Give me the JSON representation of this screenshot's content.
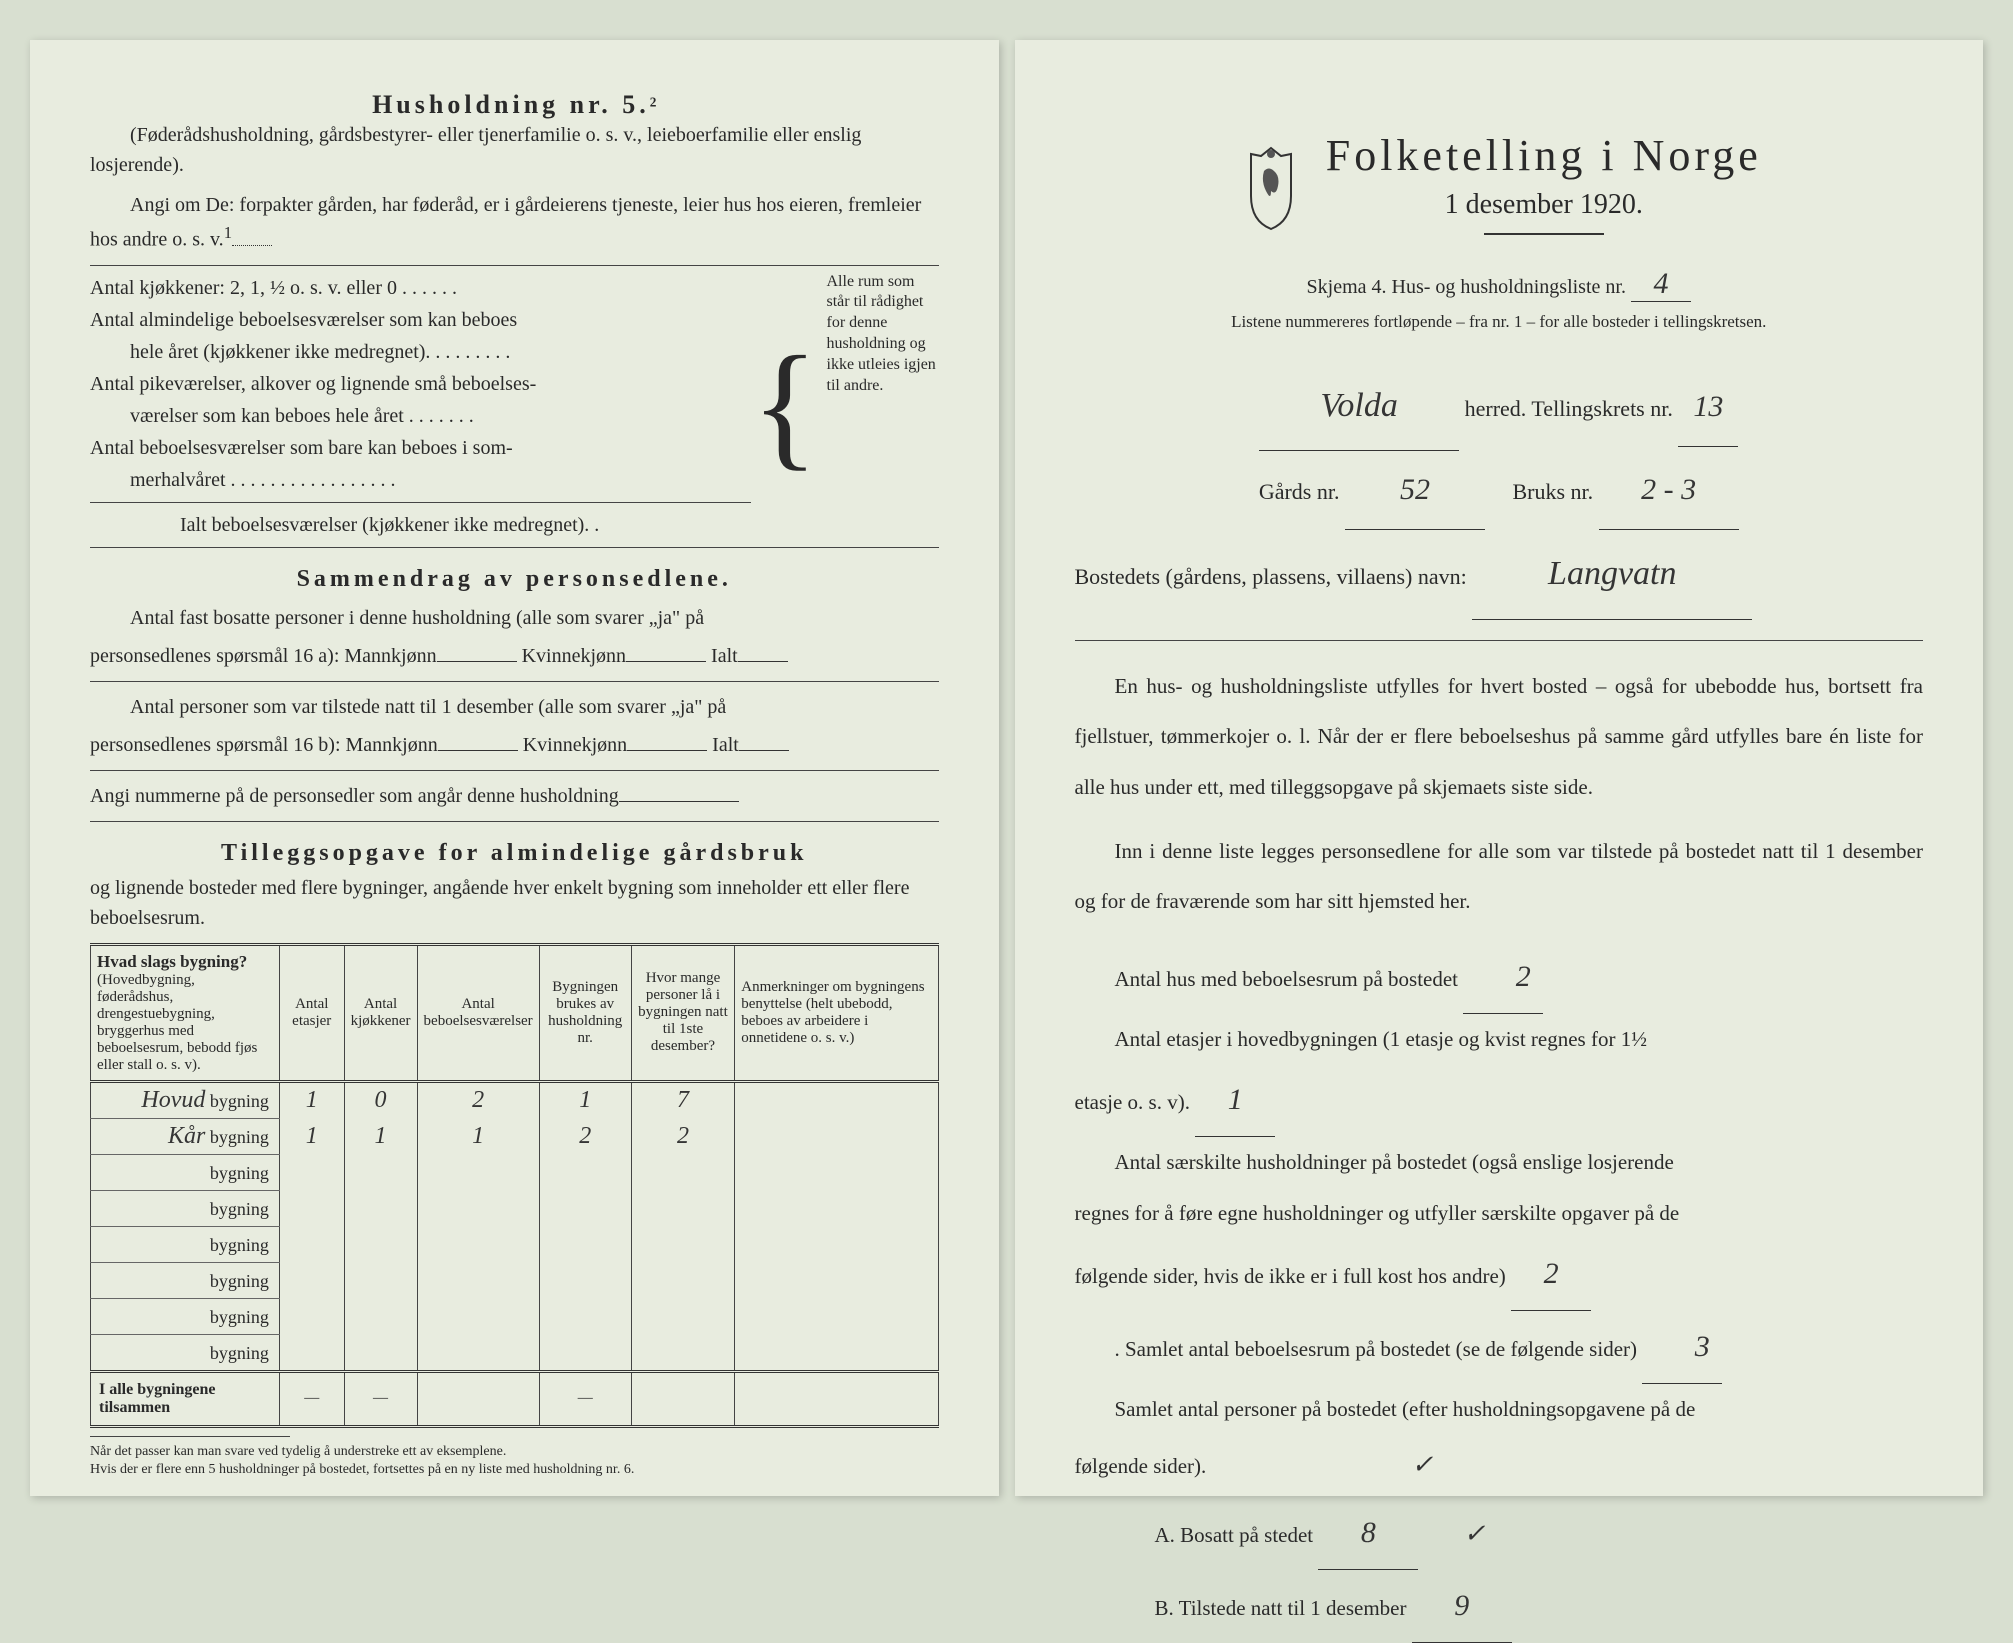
{
  "left": {
    "heading": "Husholdning nr. 5.",
    "heading_sup": "2",
    "sub1": "(Føderådshusholdning, gårdsbestyrer- eller tjenerfamilie o. s. v., leieboerfamilie eller enslig losjerende).",
    "sub2": "Angi om De: forpakter gården, har føderåd, er i gårdeierens tjeneste, leier hus hos eieren, fremleier hos andre o. s. v.",
    "sub2_sup": "1",
    "rooms": {
      "l1": "Antal kjøkkener: 2, 1, ½ o. s. v. eller 0 . . . . . .",
      "l2a": "Antal almindelige beboelsesværelser som kan beboes",
      "l2b": "hele året (kjøkkener ikke medregnet). . . . . . . . .",
      "l3a": "Antal pikeværelser, alkover og lignende små beboelses-",
      "l3b": "værelser som kan beboes hele året . . . . . . .",
      "l4a": "Antal beboelsesværelser som bare kan beboes i som-",
      "l4b": "merhalvåret . . . . . . . . . . . . . . . . .",
      "l5": "Ialt beboelsesværelser  (kjøkkener ikke medregnet). .",
      "side": "Alle rum som står til rådighet for denne husholdning og ikke utleies igjen til andre."
    },
    "sammendrag_title": "Sammendrag av personsedlene.",
    "sam1a": "Antal fast bosatte personer i denne husholdning (alle som svarer „ja\" på",
    "sam1b": "personsedlenes spørsmål 16 a): Mannkjønn",
    "sam_kvin": "Kvinnekjønn",
    "sam_ialt": "Ialt",
    "sam2a": "Antal personer som var tilstede natt til 1 desember (alle som svarer „ja\" på",
    "sam2b": "personsedlenes spørsmål 16 b): Mannkjønn",
    "sam3": "Angi nummerne på de personsedler som angår denne husholdning",
    "tillegg_title": "Tilleggsopgave for almindelige gårdsbruk",
    "tillegg_sub": "og lignende bosteder med flere bygninger, angående hver enkelt bygning som inneholder ett eller flere beboelsesrum.",
    "table": {
      "h1a": "Hvad slags bygning?",
      "h1b": "(Hovedbygning, føderådshus, drengestuebygning, bryggerhus med beboelsesrum, bebodd fjøs eller stall o. s. v).",
      "h2": "Antal etasjer",
      "h3": "Antal kjøkkener",
      "h4": "Antal beboelsesværelser",
      "h5": "Bygningen brukes av husholdning nr.",
      "h6": "Hvor mange personer lå i bygningen natt til 1ste desember?",
      "h7": "Anmerkninger om bygningens benyttelse (helt ubebodd, beboes av arbeidere i onnetidene o. s. v.)",
      "rows": [
        {
          "name": "Hovud",
          "etasjer": "1",
          "kjokken": "0",
          "vaer": "2",
          "hush": "1",
          "pers": "7",
          "anm": ""
        },
        {
          "name": "Kår",
          "etasjer": "1",
          "kjokken": "1",
          "vaer": "1",
          "hush": "2",
          "pers": "2",
          "anm": ""
        },
        {
          "name": "",
          "etasjer": "",
          "kjokken": "",
          "vaer": "",
          "hush": "",
          "pers": "",
          "anm": ""
        },
        {
          "name": "",
          "etasjer": "",
          "kjokken": "",
          "vaer": "",
          "hush": "",
          "pers": "",
          "anm": ""
        },
        {
          "name": "",
          "etasjer": "",
          "kjokken": "",
          "vaer": "",
          "hush": "",
          "pers": "",
          "anm": ""
        },
        {
          "name": "",
          "etasjer": "",
          "kjokken": "",
          "vaer": "",
          "hush": "",
          "pers": "",
          "anm": ""
        },
        {
          "name": "",
          "etasjer": "",
          "kjokken": "",
          "vaer": "",
          "hush": "",
          "pers": "",
          "anm": ""
        },
        {
          "name": "",
          "etasjer": "",
          "kjokken": "",
          "vaer": "",
          "hush": "",
          "pers": "",
          "anm": ""
        }
      ],
      "bygning_label": "bygning",
      "total_label": "I alle bygningene tilsammen",
      "dash": "—"
    },
    "footnote1": "Når det passer kan man svare ved tydelig å understreke ett av eksemplene.",
    "footnote2": "Hvis der er flere enn 5 husholdninger på bostedet, fortsettes på en ny liste med husholdning nr. 6."
  },
  "right": {
    "title": "Folketelling i Norge",
    "subtitle": "1 desember 1920.",
    "skjema": "Skjema 4.   Hus- og husholdningsliste nr.",
    "skjema_val": "4",
    "listene": "Listene nummereres fortløpende – fra nr. 1 – for alle bosteder i tellingskretsen.",
    "herred_val": "Volda",
    "herred_label": "herred.   Tellingskrets nr.",
    "krets_val": "13",
    "gards_label": "Gårds nr.",
    "gards_val": "52",
    "bruks_label": "Bruks nr.",
    "bruks_val": "2 - 3",
    "bosted_label": "Bostedets (gårdens, plassens, villaens) navn:",
    "bosted_val": "Langvatn",
    "body1": "En hus- og husholdningsliste utfylles for hvert bosted – også for ubebodde hus, bortsett fra fjellstuer, tømmerkojer o. l.  Når der er flere beboelseshus på samme gård utfylles bare én liste for alle hus under ett, med tilleggsopgave på skjemaets siste side.",
    "body2": "Inn i denne liste legges personsedlene for alle som var tilstede på bostedet natt til 1 desember og for de fraværende som har sitt hjemsted her.",
    "q1": "Antal hus med beboelsesrum på bostedet",
    "q1_val": "2",
    "q2a": "Antal etasjer i hovedbygningen (1 etasje og kvist regnes for 1½",
    "q2b": "etasje o. s. v).",
    "q2_val": "1",
    "q3a": "Antal særskilte husholdninger på bostedet (også enslige losjerende",
    "q3b": "regnes for å føre egne husholdninger og utfyller særskilte opgaver på de",
    "q3c": "følgende sider, hvis de ikke er i full kost hos andre)",
    "q3_val": "2",
    "q4": ". Samlet antal beboelsesrum på bostedet (se de følgende sider)",
    "q4_val": "3",
    "q5a": "Samlet antal personer på bostedet (efter husholdningsopgavene på de",
    "q5b": "følgende sider).",
    "qA": "A.  Bosatt på stedet",
    "qA_val": "8",
    "qB": "B.  Tilstede natt til 1 desember",
    "qB_val": "9",
    "check": "✓"
  },
  "colors": {
    "paper": "#e8ecdf",
    "bg": "#d8dfd0",
    "ink": "#2a2a2a"
  }
}
